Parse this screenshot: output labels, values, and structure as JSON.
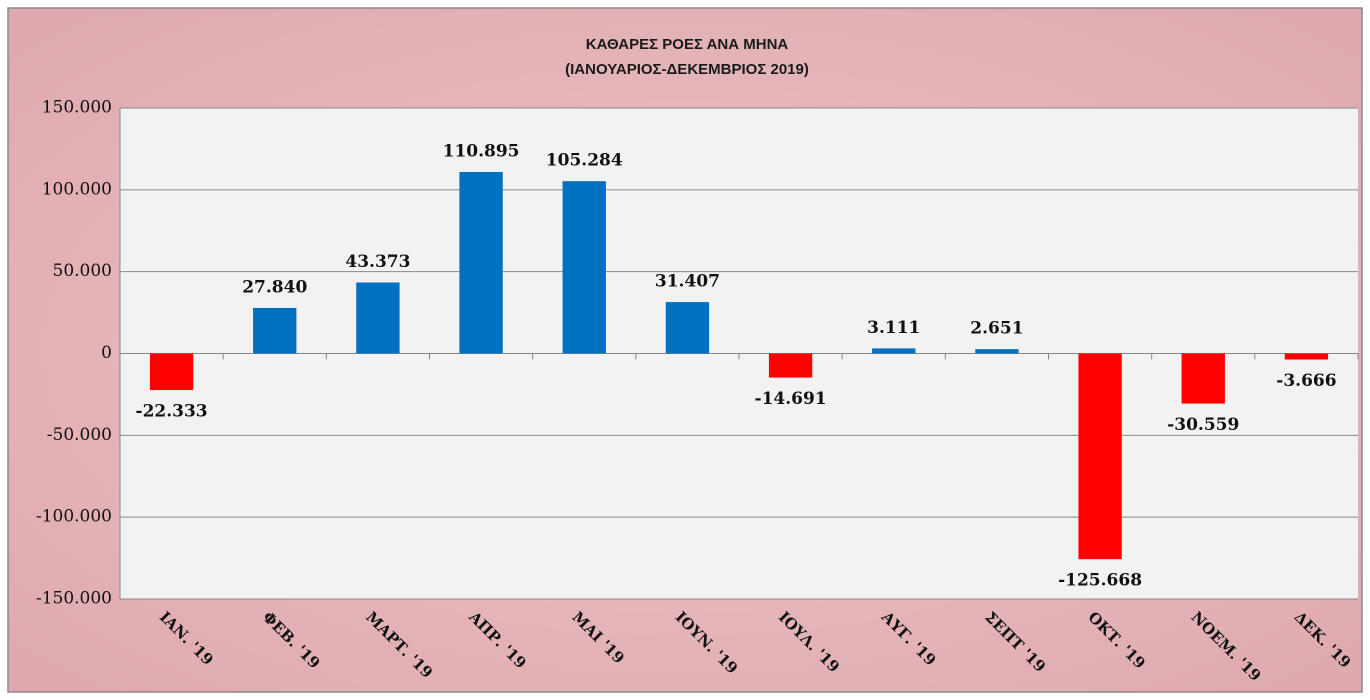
{
  "chart_data": {
    "type": "bar",
    "title": "ΚΑΘΑΡΕΣ ΡΟΕΣ ΑΝΑ ΜΗΝΑ",
    "subtitle": "(ΙΑΝΟΥΑΡΙΟΣ-ΔΕΚΕΜΒΡΙΟΣ 2019)",
    "categories": [
      "ΙΑΝ. '19",
      "ΦΕΒ. '19",
      "ΜΑΡΤ. '19",
      "ΑΠΡ. '19",
      "ΜΑΙ '19",
      "ΙΟΥΝ. '19",
      "ΙΟΥΛ. '19",
      "ΑΥΓ. '19",
      "ΣΕΠΤ '19",
      "ΟΚΤ. '19",
      "ΝΟΕΜ. '19",
      "ΔΕΚ. '19"
    ],
    "values": [
      -22333,
      27840,
      43373,
      110895,
      105284,
      31407,
      -14691,
      3111,
      2651,
      -125668,
      -30559,
      -3666
    ],
    "value_labels": [
      "-22.333",
      "27.840",
      "43.373",
      "110.895",
      "105.284",
      "31.407",
      "-14.691",
      "3.111",
      "2.651",
      "-125.668",
      "-30.559",
      "-3.666"
    ],
    "colors": [
      "#ff0000",
      "#0070c0",
      "#0070c0",
      "#0070c0",
      "#0070c0",
      "#0070c0",
      "#ff0000",
      "#0070c0",
      "#0070c0",
      "#ff0000",
      "#ff0000",
      "#ff0000"
    ],
    "ylim": [
      -150000,
      150000
    ],
    "yticks": [
      {
        "value": -150000,
        "label": "-150.000"
      },
      {
        "value": -100000,
        "label": "-100.000"
      },
      {
        "value": -50000,
        "label": "-50.000"
      },
      0,
      {
        "value": 50000,
        "label": "50.000"
      },
      {
        "value": 100000,
        "label": "100.000"
      },
      {
        "value": 150000,
        "label": "150.000"
      }
    ],
    "grid": true
  }
}
